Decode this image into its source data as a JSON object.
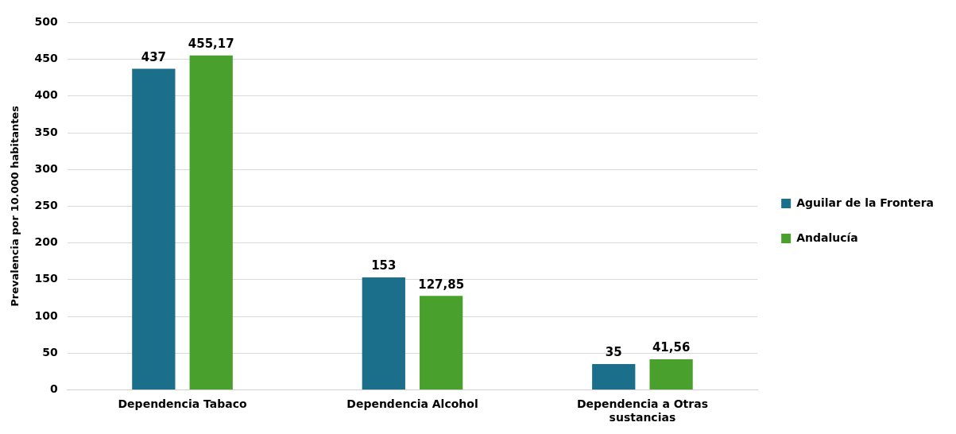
{
  "chart_data": {
    "type": "bar",
    "ylabel": "Prevalencia por 10.000 habitantes",
    "categories": [
      "Dependencia Tabaco",
      "Dependencia Alcohol",
      "Dependencia a Otras sustancias"
    ],
    "series": [
      {
        "name": "Aguilar de la Frontera",
        "color": "#1b6f8a",
        "values": [
          437,
          153,
          35
        ],
        "value_labels": [
          "437",
          "153",
          "35"
        ]
      },
      {
        "name": "Andalucía",
        "color": "#4aa02c",
        "values": [
          455.17,
          127.85,
          41.56
        ],
        "value_labels": [
          "455,17",
          "127,85",
          "41,56"
        ]
      }
    ],
    "ylim": [
      0,
      500
    ],
    "yticks": [
      0,
      50,
      100,
      150,
      200,
      250,
      300,
      350,
      400,
      450,
      500
    ],
    "grid": "y",
    "legend": "right"
  }
}
